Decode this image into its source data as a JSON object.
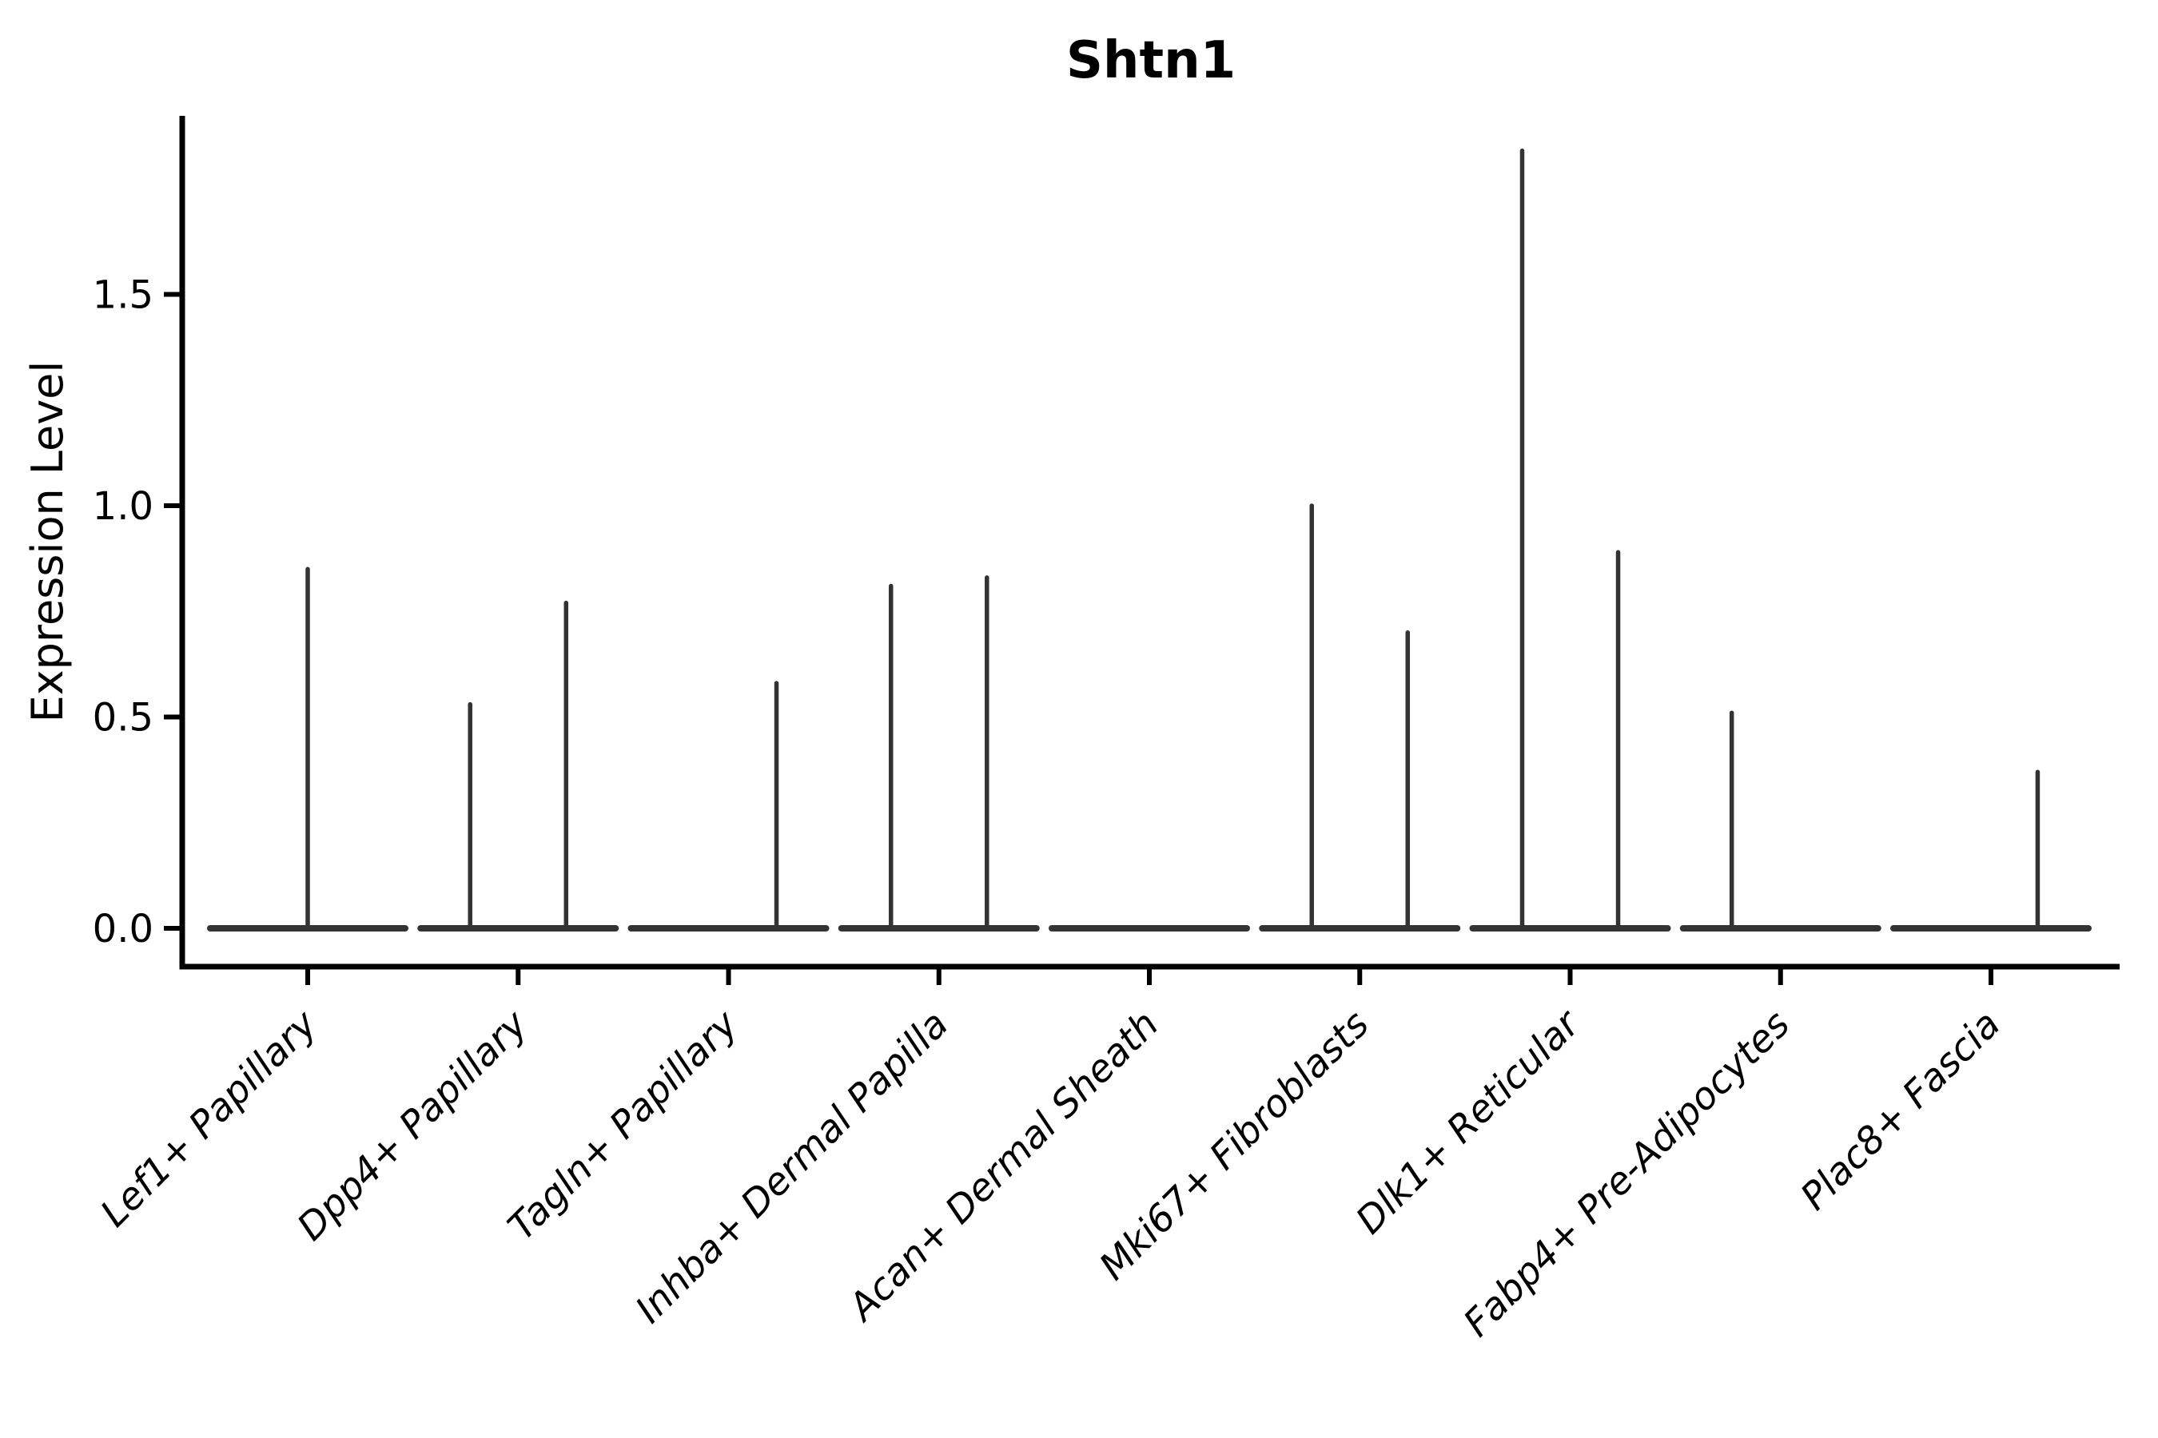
{
  "title": "Shtn1",
  "colors": {
    "background": "#ffffff",
    "axis": "#000000",
    "text": "#000000",
    "violin_stroke": "#333333"
  },
  "chart_data": {
    "type": "violin",
    "title": "Shtn1",
    "xlabel": "",
    "ylabel": "Expression Level",
    "ylim": [
      -0.09,
      1.92
    ],
    "yticks": [
      0.0,
      0.5,
      1.0,
      1.5
    ],
    "ytick_labels": [
      "0.0",
      "0.5",
      "1.0",
      "1.5"
    ],
    "grid": false,
    "legend": "none",
    "x_label_rotation_deg": 45,
    "categories": [
      "Lef1+ Papillary",
      "Dpp4+ Papillary",
      "Tagln+ Papillary",
      "Inhba+ Dermal Papilla",
      "Acan+ Dermal Sheath",
      "Mki67+ Fibroblasts",
      "Dlk1+ Reticular",
      "Fabp4+ Pre-Adipocytes",
      "Plac8+ Fascia"
    ],
    "series": [
      {
        "name": "Lef1+ Papillary",
        "baseline_at": 0.0,
        "spikes": [
          {
            "position": 0.0,
            "max": 0.85
          }
        ]
      },
      {
        "name": "Dpp4+ Papillary",
        "baseline_at": 0.0,
        "spikes": [
          {
            "position": -0.228,
            "max": 0.53
          },
          {
            "position": 0.228,
            "max": 0.77
          }
        ]
      },
      {
        "name": "Tagln+ Papillary",
        "baseline_at": 0.0,
        "spikes": [
          {
            "position": 0.228,
            "max": 0.58
          }
        ]
      },
      {
        "name": "Inhba+ Dermal Papilla",
        "baseline_at": 0.0,
        "spikes": [
          {
            "position": -0.228,
            "max": 0.81
          },
          {
            "position": 0.228,
            "max": 0.83
          }
        ]
      },
      {
        "name": "Acan+ Dermal Sheath",
        "baseline_at": 0.0,
        "spikes": []
      },
      {
        "name": "Mki67+ Fibroblasts",
        "baseline_at": 0.0,
        "spikes": [
          {
            "position": -0.228,
            "max": 1.0
          },
          {
            "position": 0.228,
            "max": 0.7
          }
        ]
      },
      {
        "name": "Dlk1+ Reticular",
        "baseline_at": 0.0,
        "spikes": [
          {
            "position": -0.228,
            "max": 1.84
          },
          {
            "position": 0.228,
            "max": 0.89
          }
        ]
      },
      {
        "name": "Fabp4+ Pre-Adipocytes",
        "baseline_at": 0.0,
        "spikes": [
          {
            "position": -0.232,
            "max": 0.51
          }
        ]
      },
      {
        "name": "Plac8+ Fascia",
        "baseline_at": 0.0,
        "spikes": [
          {
            "position": 0.222,
            "max": 0.37
          }
        ]
      }
    ]
  }
}
